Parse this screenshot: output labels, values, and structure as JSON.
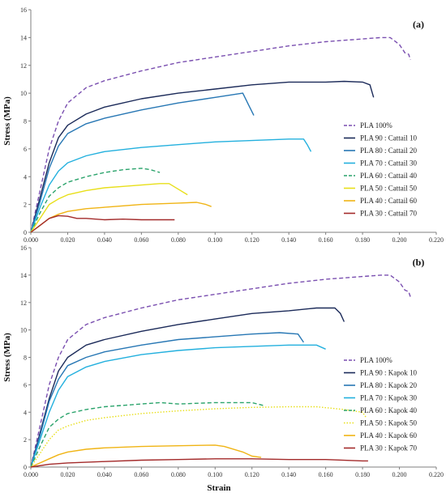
{
  "chart_data": [
    {
      "type": "line",
      "panel_label": "(a)",
      "xlabel": "",
      "ylabel": "Stress (MPa)",
      "xlim": [
        0,
        0.22
      ],
      "ylim": [
        0,
        16
      ],
      "xticks": [
        "0.000",
        "0.020",
        "0.040",
        "0.060",
        "0.080",
        "0.100",
        "0.120",
        "0.140",
        "0.160",
        "0.180",
        "0.200",
        "0.220"
      ],
      "yticks": [
        "0",
        "2",
        "4",
        "6",
        "8",
        "10",
        "12",
        "14",
        "16"
      ],
      "grid": false,
      "legend_position": "right",
      "series": [
        {
          "name": "PLA 100%",
          "color": "#7a4fb0",
          "dash": "dashed",
          "points": [
            [
              0,
              0
            ],
            [
              0.005,
              3.0
            ],
            [
              0.01,
              6.0
            ],
            [
              0.015,
              8.0
            ],
            [
              0.02,
              9.3
            ],
            [
              0.03,
              10.4
            ],
            [
              0.04,
              10.9
            ],
            [
              0.06,
              11.6
            ],
            [
              0.08,
              12.2
            ],
            [
              0.1,
              12.6
            ],
            [
              0.12,
              13.0
            ],
            [
              0.14,
              13.4
            ],
            [
              0.16,
              13.7
            ],
            [
              0.18,
              13.9
            ],
            [
              0.19,
              14.0
            ],
            [
              0.195,
              14.0
            ],
            [
              0.2,
              13.5
            ],
            [
              0.203,
              12.9
            ],
            [
              0.205,
              12.8
            ],
            [
              0.206,
              12.4
            ]
          ]
        },
        {
          "name": "PLA 90 : Cattail 10",
          "color": "#1b2a59",
          "dash": "solid",
          "points": [
            [
              0,
              0
            ],
            [
              0.005,
              2.5
            ],
            [
              0.01,
              5.0
            ],
            [
              0.015,
              6.8
            ],
            [
              0.02,
              7.7
            ],
            [
              0.03,
              8.5
            ],
            [
              0.04,
              9.0
            ],
            [
              0.06,
              9.6
            ],
            [
              0.08,
              10.0
            ],
            [
              0.1,
              10.3
            ],
            [
              0.12,
              10.6
            ],
            [
              0.14,
              10.8
            ],
            [
              0.16,
              10.8
            ],
            [
              0.17,
              10.85
            ],
            [
              0.18,
              10.8
            ],
            [
              0.184,
              10.6
            ],
            [
              0.186,
              9.7
            ]
          ]
        },
        {
          "name": "PLA 80 : Cattail 20",
          "color": "#2777b4",
          "dash": "solid",
          "points": [
            [
              0,
              0
            ],
            [
              0.005,
              2.2
            ],
            [
              0.01,
              4.6
            ],
            [
              0.015,
              6.2
            ],
            [
              0.02,
              7.1
            ],
            [
              0.03,
              7.8
            ],
            [
              0.04,
              8.2
            ],
            [
              0.06,
              8.8
            ],
            [
              0.08,
              9.3
            ],
            [
              0.1,
              9.7
            ],
            [
              0.11,
              9.9
            ],
            [
              0.115,
              10.0
            ],
            [
              0.118,
              9.2
            ],
            [
              0.121,
              8.4
            ]
          ]
        },
        {
          "name": "PLA 70 : Cattail 30",
          "color": "#23b0de",
          "dash": "solid",
          "points": [
            [
              0,
              0
            ],
            [
              0.005,
              1.8
            ],
            [
              0.01,
              3.4
            ],
            [
              0.015,
              4.4
            ],
            [
              0.02,
              5.0
            ],
            [
              0.03,
              5.5
            ],
            [
              0.04,
              5.8
            ],
            [
              0.06,
              6.1
            ],
            [
              0.08,
              6.3
            ],
            [
              0.1,
              6.5
            ],
            [
              0.12,
              6.6
            ],
            [
              0.14,
              6.7
            ],
            [
              0.148,
              6.7
            ],
            [
              0.15,
              6.3
            ],
            [
              0.152,
              5.8
            ]
          ]
        },
        {
          "name": "PLA 60 : Cattail 40",
          "color": "#2aa36b",
          "dash": "dashed",
          "points": [
            [
              0,
              0
            ],
            [
              0.005,
              1.4
            ],
            [
              0.01,
              2.6
            ],
            [
              0.015,
              3.2
            ],
            [
              0.02,
              3.6
            ],
            [
              0.03,
              4.0
            ],
            [
              0.04,
              4.3
            ],
            [
              0.05,
              4.5
            ],
            [
              0.06,
              4.6
            ],
            [
              0.065,
              4.5
            ],
            [
              0.07,
              4.3
            ]
          ]
        },
        {
          "name": "PLA 50 : Cattail 50",
          "color": "#e8df1a",
          "dash": "solid",
          "points": [
            [
              0,
              0
            ],
            [
              0.005,
              1.0
            ],
            [
              0.01,
              2.0
            ],
            [
              0.015,
              2.4
            ],
            [
              0.02,
              2.7
            ],
            [
              0.03,
              3.0
            ],
            [
              0.04,
              3.2
            ],
            [
              0.05,
              3.3
            ],
            [
              0.06,
              3.4
            ],
            [
              0.07,
              3.5
            ],
            [
              0.075,
              3.5
            ],
            [
              0.08,
              3.1
            ],
            [
              0.085,
              2.7
            ]
          ]
        },
        {
          "name": "PLA 40 : Cattail 60",
          "color": "#f0b414",
          "dash": "solid",
          "points": [
            [
              0,
              0
            ],
            [
              0.005,
              0.5
            ],
            [
              0.01,
              1.0
            ],
            [
              0.015,
              1.3
            ],
            [
              0.02,
              1.5
            ],
            [
              0.03,
              1.7
            ],
            [
              0.04,
              1.8
            ],
            [
              0.06,
              2.0
            ],
            [
              0.08,
              2.1
            ],
            [
              0.09,
              2.15
            ],
            [
              0.095,
              2.0
            ],
            [
              0.098,
              1.85
            ]
          ]
        },
        {
          "name": "PLA 30 : Cattail 70",
          "color": "#a32a2a",
          "dash": "solid",
          "points": [
            [
              0,
              0
            ],
            [
              0.005,
              0.5
            ],
            [
              0.01,
              1.0
            ],
            [
              0.015,
              1.2
            ],
            [
              0.02,
              1.15
            ],
            [
              0.025,
              1.0
            ],
            [
              0.03,
              1.0
            ],
            [
              0.04,
              0.9
            ],
            [
              0.05,
              0.95
            ],
            [
              0.06,
              0.9
            ],
            [
              0.07,
              0.9
            ],
            [
              0.078,
              0.9
            ]
          ]
        }
      ]
    },
    {
      "type": "line",
      "panel_label": "(b)",
      "xlabel": "Strain",
      "ylabel": "Stress (MPa)",
      "xlim": [
        0,
        0.22
      ],
      "ylim": [
        0,
        16
      ],
      "xticks": [
        "0.000",
        "0.020",
        "0.040",
        "0.060",
        "0.080",
        "0.100",
        "0.120",
        "0.140",
        "0.160",
        "0.180",
        "0.200",
        "0.220"
      ],
      "yticks": [
        "0",
        "2",
        "4",
        "6",
        "8",
        "10",
        "12",
        "14",
        "16"
      ],
      "grid": false,
      "legend_position": "right",
      "series": [
        {
          "name": "PLA 100%",
          "color": "#7a4fb0",
          "dash": "dashed",
          "points": [
            [
              0,
              0
            ],
            [
              0.005,
              3.0
            ],
            [
              0.01,
              6.0
            ],
            [
              0.015,
              8.0
            ],
            [
              0.02,
              9.3
            ],
            [
              0.03,
              10.4
            ],
            [
              0.04,
              10.9
            ],
            [
              0.06,
              11.6
            ],
            [
              0.08,
              12.2
            ],
            [
              0.1,
              12.6
            ],
            [
              0.12,
              13.0
            ],
            [
              0.14,
              13.4
            ],
            [
              0.16,
              13.7
            ],
            [
              0.18,
              13.9
            ],
            [
              0.19,
              14.0
            ],
            [
              0.195,
              14.0
            ],
            [
              0.2,
              13.5
            ],
            [
              0.203,
              12.9
            ],
            [
              0.205,
              12.8
            ],
            [
              0.206,
              12.4
            ]
          ]
        },
        {
          "name": "PLA 90 : Kapok 10",
          "color": "#1b2a59",
          "dash": "solid",
          "points": [
            [
              0,
              0
            ],
            [
              0.005,
              2.5
            ],
            [
              0.01,
              5.0
            ],
            [
              0.015,
              7.0
            ],
            [
              0.02,
              8.0
            ],
            [
              0.03,
              8.9
            ],
            [
              0.04,
              9.3
            ],
            [
              0.06,
              9.9
            ],
            [
              0.08,
              10.4
            ],
            [
              0.1,
              10.8
            ],
            [
              0.12,
              11.2
            ],
            [
              0.14,
              11.4
            ],
            [
              0.155,
              11.6
            ],
            [
              0.165,
              11.6
            ],
            [
              0.168,
              11.2
            ],
            [
              0.17,
              10.6
            ]
          ]
        },
        {
          "name": "PLA 80 : Kapok 20",
          "color": "#2777b4",
          "dash": "solid",
          "points": [
            [
              0,
              0
            ],
            [
              0.005,
              2.3
            ],
            [
              0.01,
              4.8
            ],
            [
              0.015,
              6.4
            ],
            [
              0.02,
              7.4
            ],
            [
              0.03,
              8.0
            ],
            [
              0.04,
              8.4
            ],
            [
              0.06,
              8.9
            ],
            [
              0.08,
              9.3
            ],
            [
              0.1,
              9.5
            ],
            [
              0.12,
              9.7
            ],
            [
              0.135,
              9.8
            ],
            [
              0.145,
              9.7
            ],
            [
              0.147,
              9.3
            ],
            [
              0.148,
              9.1
            ]
          ]
        },
        {
          "name": "PLA 70 : Kapok 30",
          "color": "#23b0de",
          "dash": "solid",
          "points": [
            [
              0,
              0
            ],
            [
              0.005,
              2.0
            ],
            [
              0.01,
              4.0
            ],
            [
              0.015,
              5.6
            ],
            [
              0.02,
              6.6
            ],
            [
              0.03,
              7.3
            ],
            [
              0.04,
              7.7
            ],
            [
              0.06,
              8.2
            ],
            [
              0.08,
              8.5
            ],
            [
              0.1,
              8.7
            ],
            [
              0.12,
              8.8
            ],
            [
              0.14,
              8.9
            ],
            [
              0.155,
              8.9
            ],
            [
              0.16,
              8.6
            ]
          ]
        },
        {
          "name": "PLA 60 : Kapok 40",
          "color": "#2aa36b",
          "dash": "dashed",
          "points": [
            [
              0,
              0
            ],
            [
              0.005,
              1.5
            ],
            [
              0.01,
              2.9
            ],
            [
              0.015,
              3.5
            ],
            [
              0.02,
              3.9
            ],
            [
              0.03,
              4.2
            ],
            [
              0.04,
              4.4
            ],
            [
              0.06,
              4.6
            ],
            [
              0.07,
              4.7
            ],
            [
              0.08,
              4.6
            ],
            [
              0.1,
              4.7
            ],
            [
              0.12,
              4.7
            ],
            [
              0.123,
              4.6
            ],
            [
              0.126,
              4.5
            ]
          ]
        },
        {
          "name": "PLA 50 : Kapok 50",
          "color": "#e8df1a",
          "dash": "dotted",
          "points": [
            [
              0,
              0
            ],
            [
              0.005,
              1.0
            ],
            [
              0.01,
              2.0
            ],
            [
              0.015,
              2.7
            ],
            [
              0.02,
              3.0
            ],
            [
              0.03,
              3.4
            ],
            [
              0.04,
              3.6
            ],
            [
              0.06,
              3.9
            ],
            [
              0.08,
              4.1
            ],
            [
              0.1,
              4.25
            ],
            [
              0.12,
              4.35
            ],
            [
              0.14,
              4.4
            ],
            [
              0.155,
              4.4
            ],
            [
              0.17,
              4.2
            ],
            [
              0.18,
              4.0
            ],
            [
              0.182,
              3.6
            ]
          ]
        },
        {
          "name": "PLA 40 : Kapok 60",
          "color": "#f0b414",
          "dash": "solid",
          "points": [
            [
              0,
              0
            ],
            [
              0.005,
              0.3
            ],
            [
              0.01,
              0.6
            ],
            [
              0.015,
              0.9
            ],
            [
              0.02,
              1.1
            ],
            [
              0.03,
              1.3
            ],
            [
              0.04,
              1.4
            ],
            [
              0.06,
              1.5
            ],
            [
              0.08,
              1.55
            ],
            [
              0.1,
              1.6
            ],
            [
              0.105,
              1.5
            ],
            [
              0.115,
              1.1
            ],
            [
              0.12,
              0.8
            ],
            [
              0.125,
              0.7
            ]
          ]
        },
        {
          "name": "PLA 30 : Kapok 70",
          "color": "#a32a2a",
          "dash": "solid",
          "points": [
            [
              0,
              0
            ],
            [
              0.01,
              0.2
            ],
            [
              0.02,
              0.3
            ],
            [
              0.04,
              0.4
            ],
            [
              0.06,
              0.5
            ],
            [
              0.08,
              0.55
            ],
            [
              0.1,
              0.6
            ],
            [
              0.12,
              0.6
            ],
            [
              0.14,
              0.55
            ],
            [
              0.16,
              0.55
            ],
            [
              0.18,
              0.45
            ],
            [
              0.183,
              0.45
            ]
          ]
        }
      ]
    }
  ]
}
